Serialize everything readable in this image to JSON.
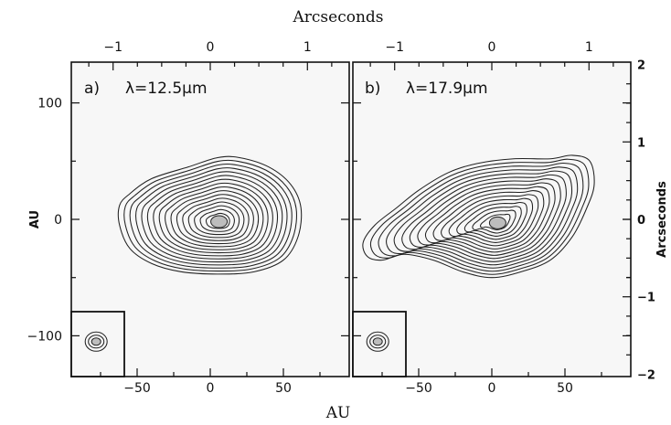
{
  "chart_data": {
    "type": "contour",
    "xlabel": "AU",
    "ylabel": "AU",
    "x2label": "Arcseconds",
    "y2label": "Arcseconds",
    "xlim": [
      -95,
      95
    ],
    "ylim": [
      -135,
      135
    ],
    "x2lim": [
      -1.43,
      1.43
    ],
    "y2lim": [
      -2.03,
      2.03
    ],
    "xticks": [
      -50,
      0,
      50
    ],
    "yticks": [
      -100,
      0,
      100
    ],
    "x2ticks": [
      -1,
      0,
      1
    ],
    "y2ticks": [
      -2,
      -1,
      0,
      1,
      2
    ],
    "x_tick_labels": [
      "−50",
      "0",
      "50"
    ],
    "y_tick_labels": [
      "−100",
      "0",
      "100"
    ],
    "x2_tick_labels": [
      "−1",
      "0",
      "1"
    ],
    "y2_tick_labels": [
      "−2",
      "−1",
      "0",
      "1",
      "2"
    ],
    "panels": [
      {
        "label": "a)",
        "wavelength": "λ=12.5μm",
        "center": [
          6,
          -2
        ],
        "levels": 16,
        "outer_shape": [
          [
            -62,
            12
          ],
          [
            -55,
            22
          ],
          [
            -40,
            35
          ],
          [
            -15,
            45
          ],
          [
            5,
            53
          ],
          [
            20,
            53
          ],
          [
            40,
            45
          ],
          [
            55,
            30
          ],
          [
            62,
            10
          ],
          [
            60,
            -15
          ],
          [
            50,
            -35
          ],
          [
            30,
            -45
          ],
          [
            5,
            -47
          ],
          [
            -20,
            -45
          ],
          [
            -40,
            -38
          ],
          [
            -55,
            -25
          ],
          [
            -62,
            -5
          ]
        ],
        "beam_center": [
          -78,
          -105
        ]
      },
      {
        "label": "b)",
        "wavelength": "λ=17.9μm",
        "center": [
          4,
          -3
        ],
        "levels": 16,
        "outer_shape": [
          [
            -88,
            -20
          ],
          [
            -80,
            -5
          ],
          [
            -65,
            10
          ],
          [
            -50,
            25
          ],
          [
            -30,
            40
          ],
          [
            -10,
            48
          ],
          [
            15,
            52
          ],
          [
            40,
            52
          ],
          [
            55,
            55
          ],
          [
            67,
            50
          ],
          [
            70,
            30
          ],
          [
            65,
            10
          ],
          [
            55,
            -15
          ],
          [
            40,
            -35
          ],
          [
            20,
            -45
          ],
          [
            0,
            -50
          ],
          [
            -20,
            -45
          ],
          [
            -40,
            -35
          ],
          [
            -60,
            -30
          ],
          [
            -75,
            -35
          ],
          [
            -85,
            -32
          ]
        ],
        "beam_center": [
          -78,
          -105
        ]
      }
    ]
  }
}
